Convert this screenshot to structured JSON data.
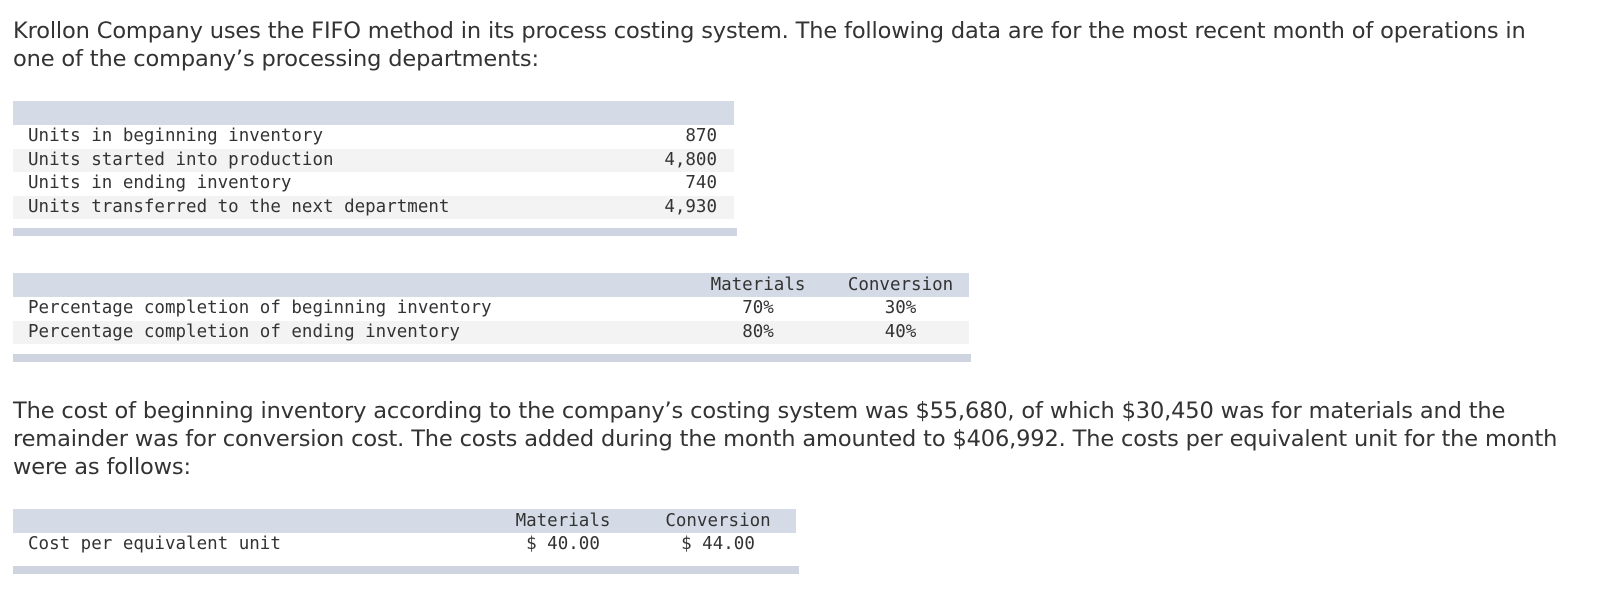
{
  "intro_text": "Krollon Company uses the FIFO method in its process costing system. The following data are for the most recent month of operations in one of the company’s processing departments:",
  "units_table": {
    "rows": [
      {
        "label": "Units in beginning inventory",
        "value": "870"
      },
      {
        "label": "Units started into production",
        "value": "4,800"
      },
      {
        "label": "Units in ending inventory",
        "value": "740"
      },
      {
        "label": "Units transferred to the next department",
        "value": "4,930"
      }
    ]
  },
  "completion_table": {
    "headers": [
      "Materials",
      "Conversion"
    ],
    "rows": [
      {
        "label": "Percentage completion of beginning inventory",
        "materials": "70%",
        "conversion": "30%"
      },
      {
        "label": "Percentage completion of ending inventory",
        "materials": "80%",
        "conversion": "40%"
      }
    ]
  },
  "cost_text": "The cost of beginning inventory according to the company’s costing system was $55,680, of which $30,450 was for materials and the remainder was for conversion cost. The costs added during the month amounted to $406,992. The costs per equivalent unit for the month were as follows:",
  "cost_table": {
    "headers": [
      "Materials",
      "Conversion"
    ],
    "rows": [
      {
        "label": "Cost per equivalent unit",
        "materials": "$ 40.00",
        "conversion": "$ 44.00"
      }
    ]
  }
}
